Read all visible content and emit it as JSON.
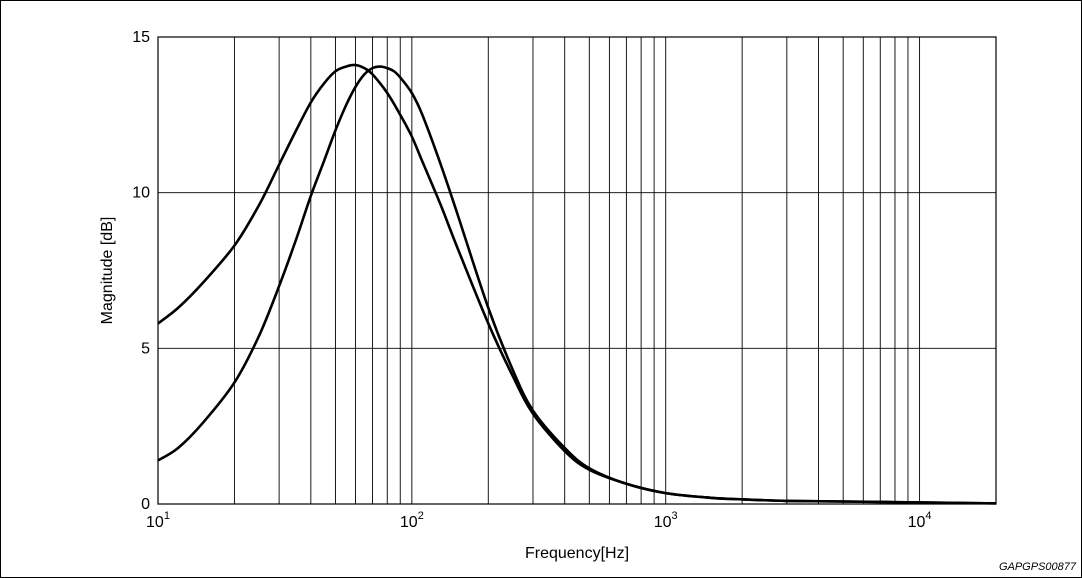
{
  "figure_code": "GAPGPS00877",
  "chart_data": {
    "type": "line",
    "title": "",
    "xlabel": "Frequency[Hz]",
    "ylabel": "Magnitude [dB]",
    "x_scale": "log",
    "xlim": [
      10,
      20000
    ],
    "ylim": [
      0,
      15
    ],
    "grid": true,
    "y_ticks": [
      0,
      5,
      10,
      15
    ],
    "y_tick_labels": [
      "0",
      "5",
      "10",
      "15"
    ],
    "x_ticks": [
      10,
      100,
      1000,
      10000
    ],
    "x_tick_labels": [
      {
        "base": "10",
        "exp": "1"
      },
      {
        "base": "10",
        "exp": "2"
      },
      {
        "base": "10",
        "exp": "3"
      },
      {
        "base": "10",
        "exp": "4"
      }
    ],
    "series": [
      {
        "color": "#000000",
        "x": [
          10,
          12,
          15,
          20,
          25,
          30,
          35,
          40,
          45,
          50,
          55,
          60,
          65,
          70,
          80,
          90,
          100,
          110,
          130,
          150,
          200,
          250,
          300,
          400,
          500,
          700,
          1000,
          1500,
          2000,
          3000,
          5000,
          10000,
          20000
        ],
        "y": [
          5.8,
          6.3,
          7.1,
          8.3,
          9.6,
          10.9,
          12.0,
          12.9,
          13.5,
          13.9,
          14.05,
          14.1,
          14.0,
          13.8,
          13.2,
          12.5,
          11.8,
          11.0,
          9.6,
          8.3,
          5.8,
          4.1,
          2.9,
          1.7,
          1.1,
          0.65,
          0.35,
          0.2,
          0.15,
          0.1,
          0.08,
          0.05,
          0.02
        ]
      },
      {
        "color": "#000000",
        "x": [
          10,
          12,
          15,
          20,
          25,
          30,
          35,
          40,
          45,
          50,
          55,
          60,
          65,
          70,
          75,
          80,
          85,
          90,
          100,
          110,
          130,
          150,
          200,
          250,
          300,
          400,
          500,
          700,
          1000,
          1500,
          2000,
          3000,
          5000,
          10000,
          20000
        ],
        "y": [
          1.4,
          1.8,
          2.6,
          3.9,
          5.4,
          7.0,
          8.5,
          9.9,
          11.0,
          12.0,
          12.8,
          13.4,
          13.8,
          14.0,
          14.05,
          14.0,
          13.9,
          13.7,
          13.2,
          12.5,
          10.9,
          9.4,
          6.3,
          4.3,
          3.0,
          1.8,
          1.15,
          0.65,
          0.35,
          0.2,
          0.15,
          0.1,
          0.08,
          0.05,
          0.02
        ]
      }
    ]
  }
}
